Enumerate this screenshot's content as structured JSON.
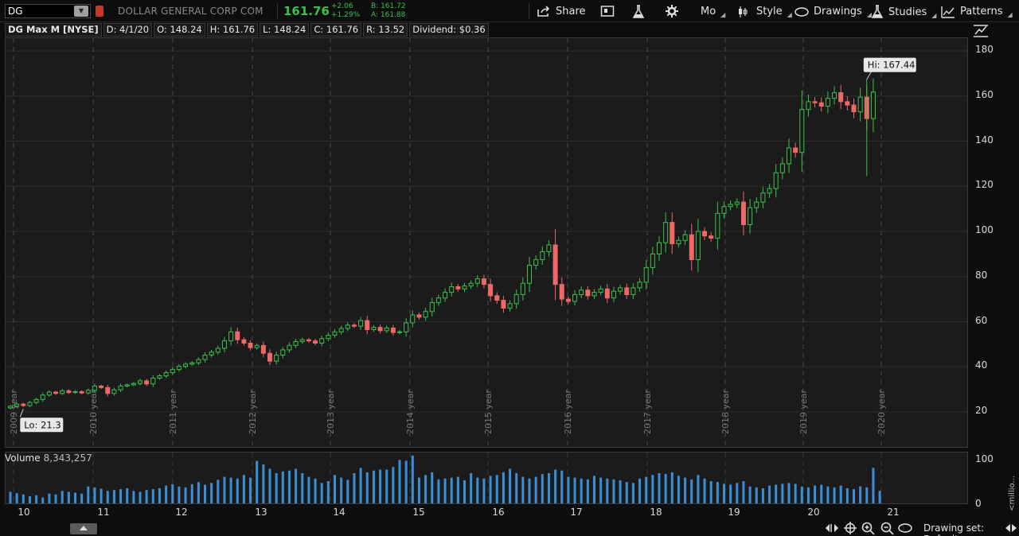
{
  "toolbar": {
    "symbol": "DG",
    "company": "DOLLAR GENERAL CORP COM",
    "last_price": "161.76",
    "net_change": "+2.06",
    "pct_change": "+1.29%",
    "bid": "B: 161.72",
    "ask": "A: 161.88",
    "share_label": "Share",
    "mo_label": "Mo",
    "style_label": "Style",
    "drawings_label": "Drawings",
    "studies_label": "Studies",
    "patterns_label": "Patterns",
    "colors": {
      "up": "#39c24a",
      "down": "#ef6868",
      "accent": "#3b8fd8"
    }
  },
  "infobar": {
    "title": "DG Max M [NYSE]",
    "date": "D: 4/1/20",
    "open": "O: 148.24",
    "high": "H: 161.76",
    "low": "L: 148.24",
    "close": "C: 161.76",
    "range": "R: 13.52",
    "dividend": "Dividend: $0.36"
  },
  "volume_header": {
    "label": "Volume",
    "value": "8,343,257",
    "unit": "<millio..."
  },
  "status": {
    "drawing_set": "Drawing set: Default"
  },
  "chart_data": {
    "type": "candlestick",
    "interval": "monthly",
    "price_ylim": [
      0,
      185
    ],
    "price_ticks": [
      20,
      40,
      60,
      80,
      100,
      120,
      140,
      160,
      180
    ],
    "volume_ylim": [
      0,
      115
    ],
    "volume_ticks": [
      "0",
      "100"
    ],
    "year_labels": [
      "2009 year",
      "2010 year",
      "2011 year",
      "2012 year",
      "2013 year",
      "2014 year",
      "2015 year",
      "2016 year",
      "2017 year",
      "2018 year",
      "2019 year",
      "2020 year"
    ],
    "time_ticks": [
      "10",
      "11",
      "12",
      "13",
      "14",
      "15",
      "16",
      "17",
      "18",
      "19",
      "20",
      "21"
    ],
    "hi_label": "Hi: 167.44",
    "lo_label": "Lo: 21.3",
    "grid": true,
    "closes": [
      22.5,
      23.5,
      22.8,
      24.2,
      25.5,
      27.5,
      28.8,
      28.2,
      29.4,
      28.6,
      29.0,
      28.4,
      29.6,
      31.5,
      30.8,
      28.2,
      29.8,
      31.5,
      32.0,
      32.6,
      33.8,
      32.4,
      35.0,
      36.0,
      37.4,
      38.8,
      40.2,
      41.2,
      41.8,
      43.2,
      45.2,
      46.5,
      48.2,
      51.5,
      55.5,
      52.0,
      50.5,
      48.5,
      49.5,
      46.0,
      42.5,
      45.2,
      47.5,
      49.5,
      51.2,
      52.0,
      51.5,
      50.5,
      52.5,
      54.0,
      55.5,
      57.0,
      58.5,
      58.0,
      60.5,
      56.5,
      57.5,
      56.0,
      57.2,
      55.2,
      55.5,
      59.5,
      63.0,
      62.0,
      64.5,
      68.5,
      70.5,
      73.0,
      75.5,
      74.5,
      75.8,
      77.0,
      79.0,
      76.5,
      71.5,
      69.5,
      66.0,
      68.0,
      72.0,
      77.0,
      85.0,
      87.5,
      91.0,
      94.0,
      76.5,
      70.0,
      69.0,
      72.0,
      74.0,
      71.5,
      73.0,
      74.5,
      70.5,
      73.5,
      75.0,
      72.0,
      75.0,
      77.5,
      84.0,
      90.0,
      95.0,
      104.0,
      94.5,
      96.0,
      98.5,
      87.5,
      100.0,
      98.0,
      97.0,
      108.0,
      111.0,
      112.0,
      113.0,
      103.0,
      110.5,
      113.0,
      117.0,
      119.0,
      126.0,
      130.0,
      137.0,
      135.0,
      154.0,
      157.5,
      157.0,
      155.5,
      159.0,
      161.5,
      157.5,
      156.0,
      153.0,
      159.5,
      150.0,
      161.76
    ],
    "volumes": [
      28,
      25,
      22,
      18,
      20,
      15,
      24,
      22,
      30,
      28,
      26,
      24,
      40,
      38,
      35,
      30,
      32,
      34,
      36,
      30,
      28,
      32,
      34,
      36,
      42,
      45,
      40,
      38,
      45,
      50,
      44,
      48,
      55,
      62,
      60,
      58,
      66,
      60,
      98,
      90,
      80,
      70,
      74,
      76,
      80,
      70,
      62,
      58,
      48,
      52,
      66,
      60,
      55,
      70,
      82,
      72,
      76,
      78,
      78,
      84,
      100,
      98,
      110,
      60,
      66,
      72,
      56,
      58,
      60,
      62,
      54,
      70,
      60,
      58,
      64,
      66,
      72,
      80,
      70,
      62,
      58,
      62,
      68,
      70,
      78,
      76,
      62,
      60,
      58,
      56,
      64,
      60,
      58,
      56,
      54,
      50,
      48,
      58,
      62,
      66,
      70,
      68,
      72,
      64,
      60,
      56,
      66,
      58,
      52,
      50,
      46,
      44,
      48,
      52,
      40,
      38,
      36,
      42,
      44,
      46,
      48,
      46,
      40,
      38,
      42,
      44,
      40,
      38,
      42,
      36,
      34,
      40,
      38,
      82,
      30
    ],
    "opens_note": ""
  }
}
